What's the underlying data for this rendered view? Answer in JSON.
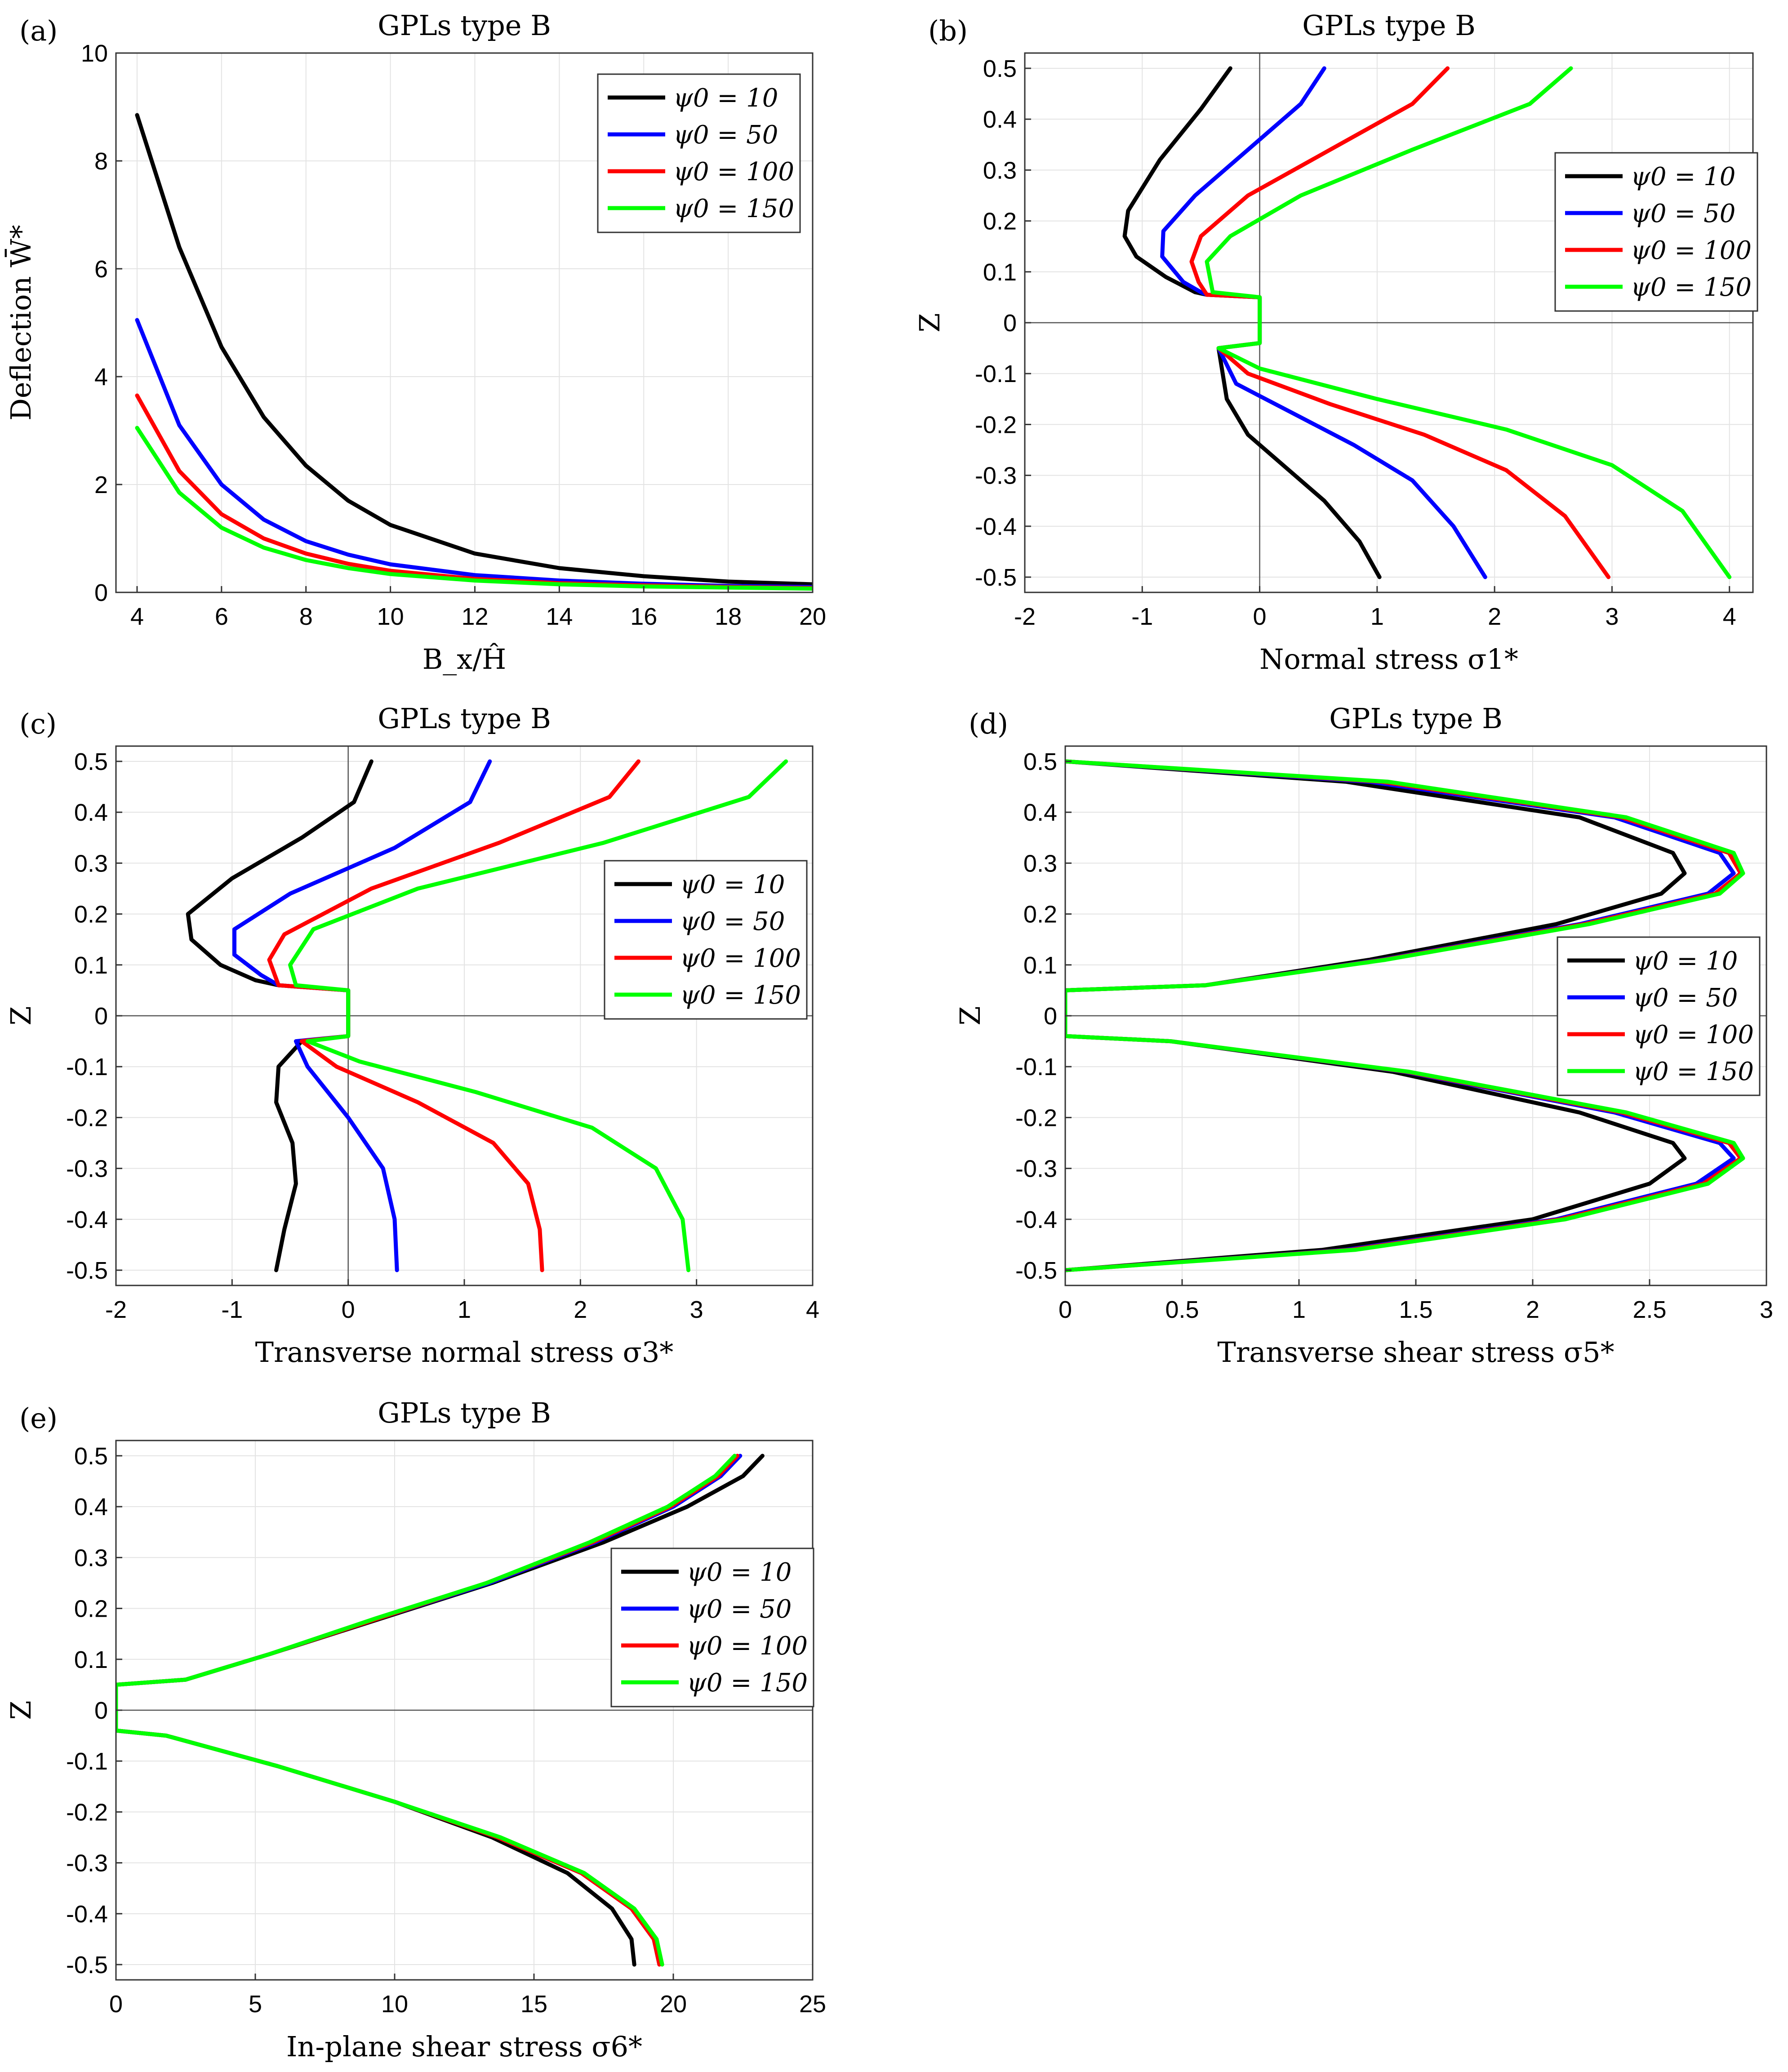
{
  "colors": {
    "black": "#000000",
    "blue": "#0000ff",
    "red": "#ff0000",
    "green": "#00ff00"
  },
  "chart_data": [
    {
      "panel": "(a)",
      "type": "line",
      "title": "GPLs type B",
      "xlabel": "B_x/Ĥ",
      "ylabel": "Deflection W̄*",
      "xlim": [
        3.5,
        20
      ],
      "ylim": [
        0,
        10
      ],
      "xticks": [
        4,
        6,
        8,
        10,
        12,
        14,
        16,
        18,
        20
      ],
      "yticks": [
        0,
        2,
        4,
        6,
        8,
        10
      ],
      "grid": true,
      "legend_position": "top-right",
      "series": [
        {
          "name": "ψ0 = 10",
          "color": "#000000",
          "x": [
            4,
            5,
            6,
            7,
            8,
            9,
            10,
            12,
            14,
            16,
            18,
            20
          ],
          "y": [
            8.85,
            6.4,
            4.55,
            3.25,
            2.35,
            1.7,
            1.25,
            0.72,
            0.45,
            0.3,
            0.2,
            0.15
          ]
        },
        {
          "name": "ψ0 = 50",
          "color": "#0000ff",
          "x": [
            4,
            5,
            6,
            7,
            8,
            9,
            10,
            12,
            14,
            16,
            18,
            20
          ],
          "y": [
            5.05,
            3.1,
            2.0,
            1.35,
            0.95,
            0.7,
            0.52,
            0.32,
            0.22,
            0.16,
            0.12,
            0.1
          ]
        },
        {
          "name": "ψ0 = 100",
          "color": "#ff0000",
          "x": [
            4,
            5,
            6,
            7,
            8,
            9,
            10,
            12,
            14,
            16,
            18,
            20
          ],
          "y": [
            3.65,
            2.25,
            1.45,
            1.0,
            0.72,
            0.53,
            0.4,
            0.25,
            0.17,
            0.13,
            0.1,
            0.08
          ]
        },
        {
          "name": "ψ0 = 150",
          "color": "#00ff00",
          "x": [
            4,
            5,
            6,
            7,
            8,
            9,
            10,
            12,
            14,
            16,
            18,
            20
          ],
          "y": [
            3.05,
            1.85,
            1.2,
            0.83,
            0.6,
            0.45,
            0.34,
            0.22,
            0.15,
            0.11,
            0.09,
            0.07
          ]
        }
      ]
    },
    {
      "panel": "(b)",
      "type": "line",
      "title": "GPLs type B",
      "xlabel": "Normal stress σ1*",
      "ylabel": "Z",
      "xlim": [
        -2,
        4.2
      ],
      "ylim": [
        -0.53,
        0.53
      ],
      "xticks": [
        -2,
        -1,
        0,
        1,
        2,
        3,
        4
      ],
      "yticks": [
        0.5,
        0.4,
        0.3,
        0.2,
        0.1,
        0,
        -0.1,
        -0.2,
        -0.3,
        -0.4,
        -0.5
      ],
      "grid": true,
      "legend_position": "right",
      "series": [
        {
          "name": "ψ0 = 10",
          "color": "#000000",
          "x": [
            -0.25,
            -0.5,
            -0.85,
            -1.12,
            -1.15,
            -1.05,
            -0.8,
            -0.55,
            -0.45,
            0,
            0,
            -0.35,
            -0.28,
            -0.1,
            0.2,
            0.55,
            0.85,
            1.02
          ],
          "y": [
            0.5,
            0.42,
            0.32,
            0.22,
            0.17,
            0.13,
            0.09,
            0.06,
            0.055,
            0.05,
            -0.04,
            -0.05,
            -0.15,
            -0.22,
            -0.28,
            -0.35,
            -0.43,
            -0.5
          ]
        },
        {
          "name": "ψ0 = 50",
          "color": "#0000ff",
          "x": [
            0.55,
            0.35,
            -0.1,
            -0.55,
            -0.82,
            -0.83,
            -0.65,
            -0.5,
            -0.45,
            0,
            0,
            -0.35,
            -0.2,
            0.3,
            0.8,
            1.3,
            1.65,
            1.92
          ],
          "y": [
            0.5,
            0.43,
            0.34,
            0.25,
            0.18,
            0.13,
            0.08,
            0.06,
            0.055,
            0.05,
            -0.04,
            -0.05,
            -0.12,
            -0.18,
            -0.24,
            -0.31,
            -0.4,
            -0.5
          ]
        },
        {
          "name": "ψ0 = 100",
          "color": "#ff0000",
          "x": [
            1.6,
            1.3,
            0.6,
            -0.1,
            -0.5,
            -0.58,
            -0.52,
            -0.45,
            0,
            0,
            -0.35,
            -0.1,
            0.6,
            1.4,
            2.1,
            2.6,
            2.97
          ],
          "y": [
            0.5,
            0.43,
            0.34,
            0.25,
            0.17,
            0.12,
            0.08,
            0.055,
            0.05,
            -0.04,
            -0.05,
            -0.1,
            -0.16,
            -0.22,
            -0.29,
            -0.38,
            -0.5
          ]
        },
        {
          "name": "ψ0 = 150",
          "color": "#00ff00",
          "x": [
            2.65,
            2.3,
            1.3,
            0.35,
            -0.25,
            -0.45,
            -0.4,
            0,
            0,
            -0.35,
            0,
            1.0,
            2.1,
            3.0,
            3.6,
            4.0
          ],
          "y": [
            0.5,
            0.43,
            0.34,
            0.25,
            0.17,
            0.12,
            0.06,
            0.05,
            -0.04,
            -0.05,
            -0.09,
            -0.15,
            -0.21,
            -0.28,
            -0.37,
            -0.5
          ]
        }
      ]
    },
    {
      "panel": "(c)",
      "type": "line",
      "title": "GPLs type B",
      "xlabel": "Transverse normal stress σ3*",
      "ylabel": "Z",
      "xlim": [
        -2,
        4
      ],
      "ylim": [
        -0.53,
        0.53
      ],
      "xticks": [
        -2,
        -1,
        0,
        1,
        2,
        3,
        4
      ],
      "yticks": [
        0.5,
        0.4,
        0.3,
        0.2,
        0.1,
        0,
        -0.1,
        -0.2,
        -0.3,
        -0.4,
        -0.5
      ],
      "grid": true,
      "legend_position": "right",
      "series": [
        {
          "name": "ψ0 = 10",
          "color": "#000000",
          "x": [
            0.2,
            0.05,
            -0.4,
            -1.0,
            -1.38,
            -1.35,
            -1.1,
            -0.8,
            -0.6,
            0,
            0,
            -0.4,
            -0.6,
            -0.62,
            -0.48,
            -0.45,
            -0.55,
            -0.62
          ],
          "y": [
            0.5,
            0.42,
            0.35,
            0.27,
            0.2,
            0.15,
            0.1,
            0.07,
            0.06,
            0.05,
            -0.04,
            -0.05,
            -0.1,
            -0.17,
            -0.25,
            -0.33,
            -0.42,
            -0.5
          ]
        },
        {
          "name": "ψ0 = 50",
          "color": "#0000ff",
          "x": [
            1.22,
            1.05,
            0.4,
            -0.5,
            -0.98,
            -0.98,
            -0.75,
            -0.6,
            0,
            0,
            -0.45,
            -0.35,
            0,
            0.3,
            0.4,
            0.42
          ],
          "y": [
            0.5,
            0.42,
            0.33,
            0.24,
            0.17,
            0.12,
            0.08,
            0.06,
            0.05,
            -0.04,
            -0.05,
            -0.1,
            -0.2,
            -0.3,
            -0.4,
            -0.5
          ]
        },
        {
          "name": "ψ0 = 100",
          "color": "#ff0000",
          "x": [
            2.5,
            2.25,
            1.3,
            0.2,
            -0.55,
            -0.68,
            -0.6,
            0,
            0,
            -0.4,
            -0.1,
            0.6,
            1.25,
            1.55,
            1.65,
            1.67
          ],
          "y": [
            0.5,
            0.43,
            0.34,
            0.25,
            0.16,
            0.11,
            0.06,
            0.05,
            -0.04,
            -0.05,
            -0.1,
            -0.17,
            -0.25,
            -0.33,
            -0.42,
            -0.5
          ]
        },
        {
          "name": "ψ0 = 150",
          "color": "#00ff00",
          "x": [
            3.77,
            3.45,
            2.2,
            0.6,
            -0.3,
            -0.5,
            -0.45,
            0,
            0,
            -0.35,
            0.1,
            1.1,
            2.1,
            2.65,
            2.88,
            2.93
          ],
          "y": [
            0.5,
            0.43,
            0.34,
            0.25,
            0.17,
            0.1,
            0.06,
            0.05,
            -0.04,
            -0.05,
            -0.09,
            -0.15,
            -0.22,
            -0.3,
            -0.4,
            -0.5
          ]
        }
      ]
    },
    {
      "panel": "(d)",
      "type": "line",
      "title": "GPLs type B",
      "xlabel": "Transverse shear stress σ5*",
      "ylabel": "Z",
      "xlim": [
        0,
        3
      ],
      "ylim": [
        -0.53,
        0.53
      ],
      "xticks": [
        0,
        0.5,
        1,
        1.5,
        2,
        2.5,
        3
      ],
      "yticks": [
        0.5,
        0.4,
        0.3,
        0.2,
        0.1,
        0,
        -0.1,
        -0.2,
        -0.3,
        -0.4,
        -0.5
      ],
      "grid": true,
      "legend_position": "right",
      "series": [
        {
          "name": "ψ0 = 10",
          "color": "#000000",
          "x": [
            0,
            1.2,
            2.2,
            2.6,
            2.65,
            2.55,
            2.1,
            1.3,
            0.6,
            0,
            0,
            0,
            0.45,
            1.4,
            2.2,
            2.6,
            2.65,
            2.5,
            2.0,
            1.1,
            0
          ],
          "y": [
            0.5,
            0.46,
            0.39,
            0.32,
            0.28,
            0.24,
            0.18,
            0.11,
            0.06,
            0.05,
            0,
            -0.04,
            -0.05,
            -0.11,
            -0.19,
            -0.25,
            -0.28,
            -0.33,
            -0.4,
            -0.46,
            -0.5
          ]
        },
        {
          "name": "ψ0 = 50",
          "color": "#0000ff",
          "x": [
            0,
            1.3,
            2.35,
            2.8,
            2.86,
            2.75,
            2.2,
            1.35,
            0.6,
            0,
            0,
            0,
            0.45,
            1.45,
            2.35,
            2.8,
            2.86,
            2.7,
            2.1,
            1.2,
            0
          ],
          "y": [
            0.5,
            0.46,
            0.39,
            0.32,
            0.28,
            0.24,
            0.18,
            0.11,
            0.06,
            0.05,
            0,
            -0.04,
            -0.05,
            -0.11,
            -0.19,
            -0.25,
            -0.28,
            -0.33,
            -0.4,
            -0.46,
            -0.5
          ]
        },
        {
          "name": "ψ0 = 100",
          "color": "#ff0000",
          "x": [
            0,
            1.35,
            2.38,
            2.84,
            2.89,
            2.78,
            2.22,
            1.36,
            0.6,
            0,
            0,
            0,
            0.45,
            1.46,
            2.38,
            2.84,
            2.89,
            2.73,
            2.12,
            1.22,
            0
          ],
          "y": [
            0.5,
            0.46,
            0.39,
            0.32,
            0.28,
            0.24,
            0.18,
            0.11,
            0.06,
            0.05,
            0,
            -0.04,
            -0.05,
            -0.11,
            -0.19,
            -0.25,
            -0.28,
            -0.33,
            -0.4,
            -0.46,
            -0.5
          ]
        },
        {
          "name": "ψ0 = 150",
          "color": "#00ff00",
          "x": [
            0,
            1.38,
            2.4,
            2.86,
            2.9,
            2.8,
            2.24,
            1.37,
            0.6,
            0,
            0,
            0,
            0.45,
            1.47,
            2.4,
            2.86,
            2.9,
            2.75,
            2.14,
            1.24,
            0
          ],
          "y": [
            0.5,
            0.46,
            0.39,
            0.32,
            0.28,
            0.24,
            0.18,
            0.11,
            0.06,
            0.05,
            0,
            -0.04,
            -0.05,
            -0.11,
            -0.19,
            -0.25,
            -0.28,
            -0.33,
            -0.4,
            -0.46,
            -0.5
          ]
        }
      ]
    },
    {
      "panel": "(e)",
      "type": "line",
      "title": "GPLs type B",
      "xlabel": "In-plane shear stress σ6*",
      "ylabel": "Z",
      "xlim": [
        0,
        25
      ],
      "ylim": [
        -0.53,
        0.53
      ],
      "xticks": [
        0,
        5,
        10,
        15,
        20,
        25
      ],
      "yticks": [
        0.5,
        0.4,
        0.3,
        0.2,
        0.1,
        0,
        -0.1,
        -0.2,
        -0.3,
        -0.4,
        -0.5
      ],
      "grid": true,
      "legend_position": "right",
      "series": [
        {
          "name": "ψ0 = 10",
          "color": "#000000",
          "x": [
            23.2,
            22.5,
            20.5,
            17.5,
            13.5,
            9.5,
            5.5,
            2.5,
            0,
            0,
            0,
            1.8,
            5.8,
            10.0,
            13.5,
            16.2,
            17.8,
            18.5,
            18.6
          ],
          "y": [
            0.5,
            0.46,
            0.4,
            0.33,
            0.25,
            0.18,
            0.11,
            0.06,
            0.05,
            0,
            -0.04,
            -0.05,
            -0.11,
            -0.18,
            -0.25,
            -0.32,
            -0.39,
            -0.45,
            -0.5
          ]
        },
        {
          "name": "ψ0 = 50",
          "color": "#0000ff",
          "x": [
            22.4,
            21.7,
            20.0,
            17.2,
            13.4,
            9.4,
            5.5,
            2.5,
            0,
            0,
            0,
            1.8,
            5.8,
            10.0,
            13.7,
            16.7,
            18.5,
            19.3,
            19.5
          ],
          "y": [
            0.5,
            0.46,
            0.4,
            0.33,
            0.25,
            0.18,
            0.11,
            0.06,
            0.05,
            0,
            -0.04,
            -0.05,
            -0.11,
            -0.18,
            -0.25,
            -0.32,
            -0.39,
            -0.45,
            -0.5
          ]
        },
        {
          "name": "ψ0 = 100",
          "color": "#ff0000",
          "x": [
            22.3,
            21.6,
            19.9,
            17.1,
            13.3,
            9.4,
            5.5,
            2.5,
            0,
            0,
            0,
            1.8,
            5.8,
            10.0,
            13.7,
            16.7,
            18.5,
            19.3,
            19.5
          ],
          "y": [
            0.5,
            0.46,
            0.4,
            0.33,
            0.25,
            0.18,
            0.11,
            0.06,
            0.05,
            0,
            -0.04,
            -0.05,
            -0.11,
            -0.18,
            -0.25,
            -0.32,
            -0.39,
            -0.45,
            -0.5
          ]
        },
        {
          "name": "ψ0 = 150",
          "color": "#00ff00",
          "x": [
            22.2,
            21.5,
            19.8,
            17.0,
            13.3,
            9.3,
            5.5,
            2.5,
            0,
            0,
            0,
            1.8,
            5.8,
            10.0,
            13.8,
            16.8,
            18.6,
            19.4,
            19.6
          ],
          "y": [
            0.5,
            0.46,
            0.4,
            0.33,
            0.25,
            0.18,
            0.11,
            0.06,
            0.05,
            0,
            -0.04,
            -0.05,
            -0.11,
            -0.18,
            -0.25,
            -0.32,
            -0.39,
            -0.45,
            -0.5
          ]
        }
      ]
    }
  ]
}
